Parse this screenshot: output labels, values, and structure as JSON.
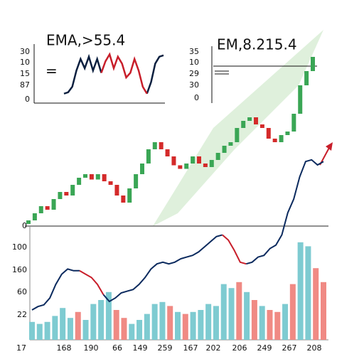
{
  "chart_data": [
    {
      "type": "line",
      "title": "EMA,>55.4",
      "y_labels": [
        "30",
        "10",
        "15",
        "87",
        "0"
      ],
      "ylim": [
        0,
        100
      ],
      "series": [
        {
          "color": "#0b1f3f",
          "values": [
            5,
            8,
            20,
            55,
            80,
            60,
            85,
            55,
            80,
            50,
            null,
            null,
            null,
            null,
            null,
            null,
            null,
            null,
            null,
            null,
            5,
            30,
            70,
            85,
            88
          ]
        },
        {
          "color": "#c81e2a",
          "values": [
            null,
            null,
            null,
            null,
            null,
            null,
            null,
            null,
            null,
            50,
            75,
            90,
            60,
            85,
            70,
            40,
            50,
            80,
            55,
            20,
            5,
            null,
            null,
            null,
            null
          ]
        }
      ]
    },
    {
      "type": "annotation",
      "title": "EM,8.215.4",
      "y_labels": [
        "35",
        "10",
        "29",
        "30",
        "0"
      ]
    },
    {
      "type": "candlestick",
      "ylim": [
        0,
        100
      ],
      "up_color": "#3aa655",
      "down_color": "#d42a2a",
      "open": [
        2,
        4,
        8,
        12,
        10,
        16,
        20,
        18,
        24,
        28,
        30,
        27,
        30,
        26,
        24,
        18,
        14,
        22,
        30,
        36,
        44,
        48,
        44,
        40,
        35,
        33,
        36,
        40,
        36,
        34,
        38,
        42,
        46,
        48,
        56,
        60,
        62,
        58,
        56,
        50,
        48,
        52,
        54,
        64,
        80,
        88
      ],
      "close": [
        4,
        8,
        12,
        10,
        16,
        20,
        18,
        24,
        28,
        30,
        27,
        30,
        26,
        24,
        18,
        14,
        22,
        30,
        36,
        44,
        48,
        44,
        40,
        35,
        33,
        36,
        40,
        36,
        34,
        38,
        42,
        46,
        48,
        56,
        60,
        62,
        58,
        56,
        50,
        48,
        52,
        54,
        64,
        80,
        88,
        96
      ]
    },
    {
      "type": "line_bar",
      "y_labels": [
        "0",
        "100",
        "160",
        "60",
        "22"
      ],
      "x_labels": [
        "17",
        "168",
        "190",
        "66",
        "149",
        "259",
        "167",
        "202",
        "206",
        "249",
        "267",
        "208"
      ],
      "line_ylim": [
        0,
        100
      ],
      "bar_ylim": [
        0,
        100
      ],
      "lines": [
        {
          "color": "#0b2a5e",
          "values": [
            10,
            12,
            13,
            17,
            25,
            31,
            34,
            33,
            33,
            null,
            null,
            null,
            19,
            15,
            17,
            20,
            21,
            22,
            25,
            29,
            34,
            37,
            38,
            37,
            38,
            40,
            41,
            42,
            44,
            47,
            50,
            53,
            54,
            null,
            null,
            null,
            37,
            38,
            41,
            42,
            46,
            48,
            54,
            67,
            75,
            88,
            97,
            98,
            95,
            97
          ]
        },
        {
          "color": "#c81e2a",
          "values": [
            null,
            null,
            null,
            null,
            null,
            null,
            null,
            null,
            33,
            31,
            29,
            25,
            19,
            null,
            null,
            null,
            null,
            null,
            null,
            null,
            null,
            null,
            null,
            null,
            null,
            null,
            null,
            null,
            null,
            null,
            null,
            null,
            54,
            51,
            45,
            38,
            37,
            null,
            null,
            null,
            null,
            null,
            null,
            null,
            null,
            null,
            null,
            null,
            null,
            null
          ]
        }
      ],
      "bars": [
        {
          "color": "#7ecbd1",
          "values": [
            18,
            16,
            18,
            24,
            32,
            22,
            null,
            20,
            36,
            40,
            48,
            null,
            null,
            16,
            20,
            26,
            36,
            38,
            null,
            28,
            null,
            28,
            30,
            36,
            34,
            56,
            52,
            null,
            48,
            null,
            34,
            null,
            null,
            36,
            null,
            98,
            94,
            null,
            null
          ]
        },
        {
          "color": "#f08a84",
          "values": [
            null,
            null,
            null,
            null,
            null,
            null,
            28,
            null,
            null,
            null,
            null,
            30,
            22,
            null,
            null,
            null,
            null,
            null,
            34,
            null,
            26,
            null,
            null,
            null,
            null,
            null,
            null,
            58,
            null,
            40,
            null,
            30,
            28,
            null,
            56,
            null,
            null,
            72,
            58
          ]
        }
      ]
    }
  ]
}
